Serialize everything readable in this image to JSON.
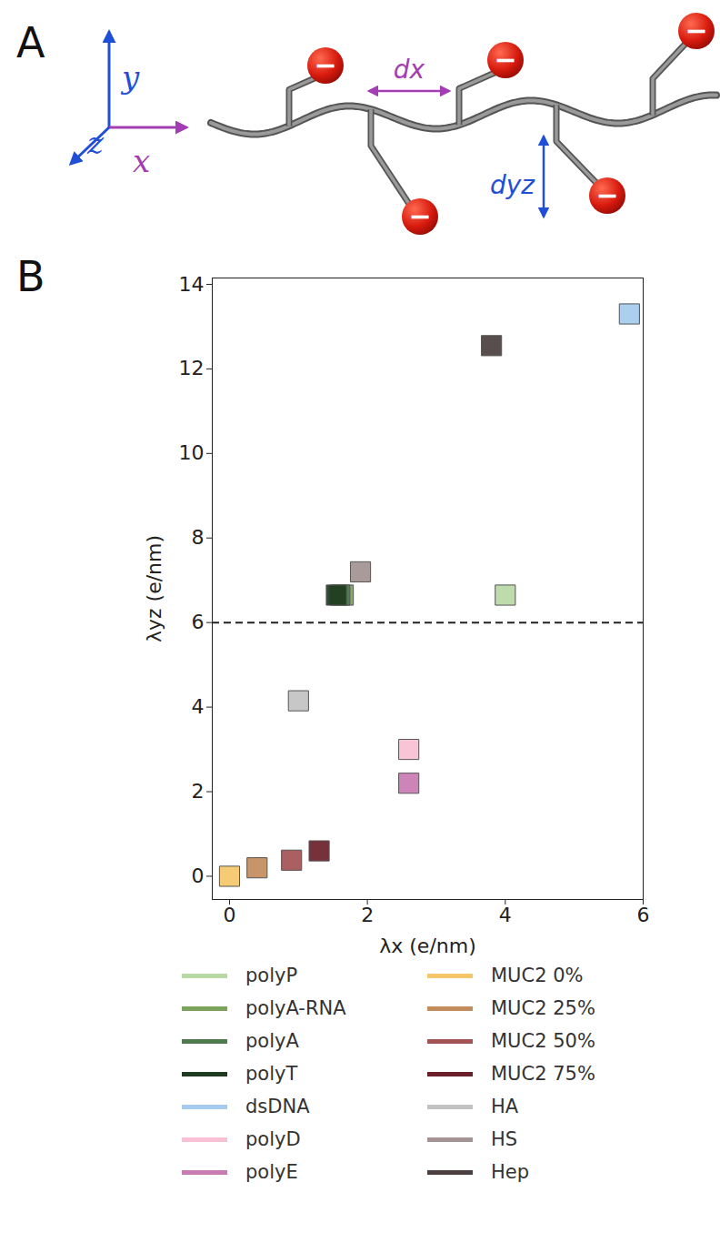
{
  "diagram": {
    "panel_label": "A",
    "axis_labels": {
      "x": "x",
      "y": "y",
      "z": "z"
    },
    "dimensions": {
      "along": "dx",
      "across": "dyz"
    },
    "charge_symbol": "−"
  },
  "chart_data": {
    "type": "scatter",
    "panel_label": "B",
    "x_label": "λx (e/nm)",
    "y_label": "λyz (e/nm)",
    "xlim": [
      -0.25,
      6
    ],
    "ylim": [
      -0.55,
      14.15
    ],
    "xticks": [
      0,
      2,
      4,
      6
    ],
    "yticks": [
      0,
      2,
      4,
      6,
      8,
      10,
      12,
      14
    ],
    "grid": false,
    "marker": "square",
    "legend": "bottom",
    "reference_lines": [
      {
        "y": 6,
        "line_style": "dashed"
      }
    ],
    "series": [
      {
        "name": "polyP",
        "color": "#b8d8a4",
        "x": [
          4.0
        ],
        "y": [
          6.65
        ]
      },
      {
        "name": "polyA-RNA",
        "color": "#7ba35c",
        "x": [
          1.65
        ],
        "y": [
          6.65
        ]
      },
      {
        "name": "polyA",
        "color": "#4e7a4e",
        "x": [
          1.6
        ],
        "y": [
          6.65
        ]
      },
      {
        "name": "polyT",
        "color": "#1f3b1f",
        "x": [
          1.55
        ],
        "y": [
          6.65
        ]
      },
      {
        "name": "dsDNA",
        "color": "#a6cbee",
        "x": [
          5.8
        ],
        "y": [
          13.3
        ]
      },
      {
        "name": "polyD",
        "color": "#f8c0d2",
        "x": [
          2.6
        ],
        "y": [
          3.0
        ]
      },
      {
        "name": "polyE",
        "color": "#c87ab3",
        "x": [
          2.6
        ],
        "y": [
          2.2
        ]
      },
      {
        "name": "MUC2 0%",
        "color": "#f5c76a",
        "x": [
          0.0
        ],
        "y": [
          0.0
        ]
      },
      {
        "name": "MUC2 25%",
        "color": "#c28c5c",
        "x": [
          0.4
        ],
        "y": [
          0.2
        ]
      },
      {
        "name": "MUC2 50%",
        "color": "#a35353",
        "x": [
          0.9
        ],
        "y": [
          0.38
        ]
      },
      {
        "name": "MUC2 75%",
        "color": "#6b1f2a",
        "x": [
          1.3
        ],
        "y": [
          0.6
        ]
      },
      {
        "name": "HA",
        "color": "#c2c2c2",
        "x": [
          1.0
        ],
        "y": [
          4.15
        ]
      },
      {
        "name": "HS",
        "color": "#a39393",
        "x": [
          1.9
        ],
        "y": [
          7.2
        ]
      },
      {
        "name": "Hep",
        "color": "#4b3f3f",
        "x": [
          3.8
        ],
        "y": [
          12.55
        ]
      }
    ]
  }
}
